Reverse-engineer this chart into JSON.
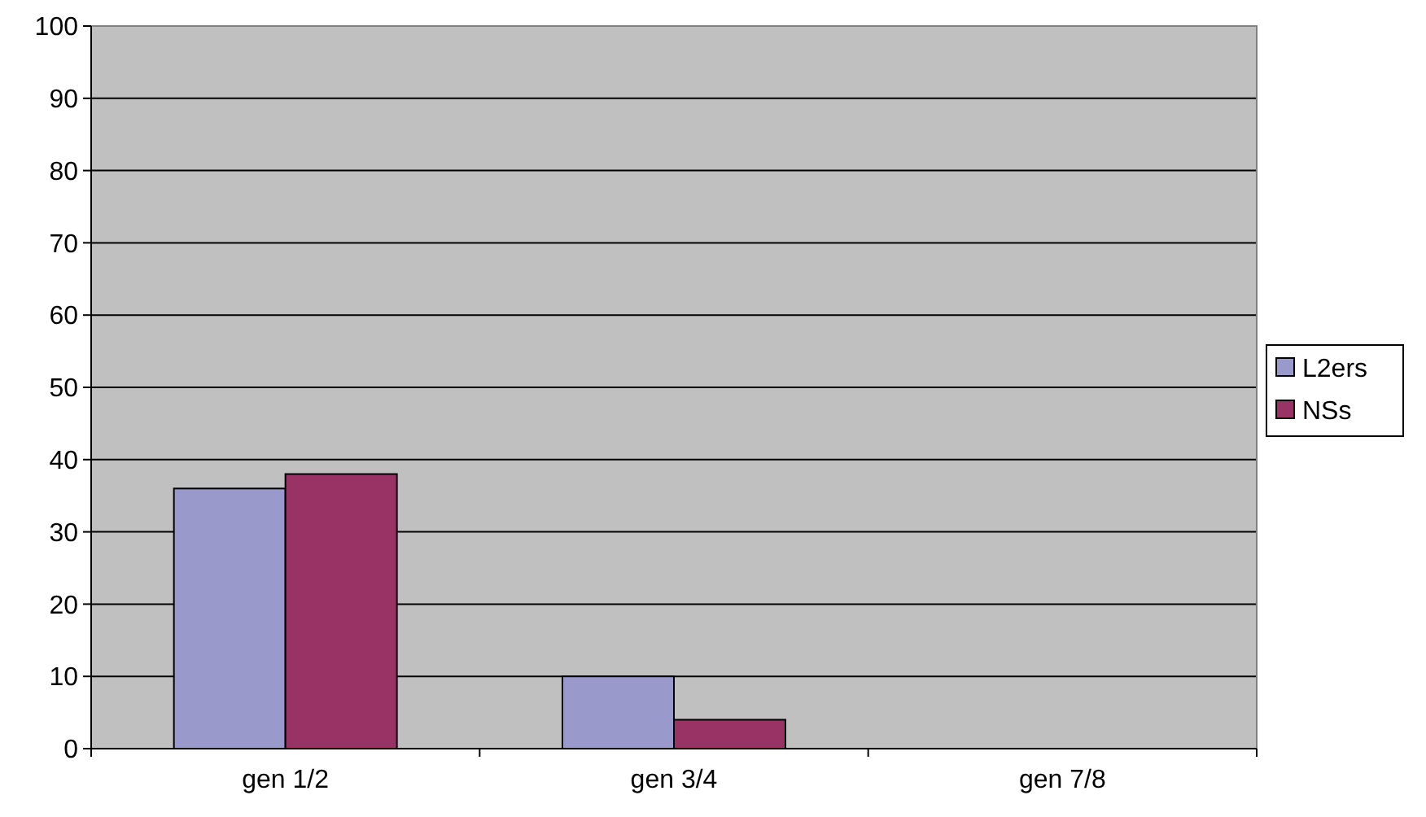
{
  "chart_data": {
    "type": "bar",
    "categories": [
      "gen 1/2",
      "gen 3/4",
      "gen 7/8"
    ],
    "series": [
      {
        "name": "L2ers",
        "color": "#9999cc",
        "values": [
          36,
          10,
          0
        ]
      },
      {
        "name": "NSs",
        "color": "#993366",
        "values": [
          38,
          4,
          0
        ]
      }
    ],
    "ylim": [
      0,
      100
    ],
    "yticks": [
      0,
      10,
      20,
      30,
      40,
      50,
      60,
      70,
      80,
      90,
      100
    ],
    "grid": "y",
    "legend": "right"
  }
}
